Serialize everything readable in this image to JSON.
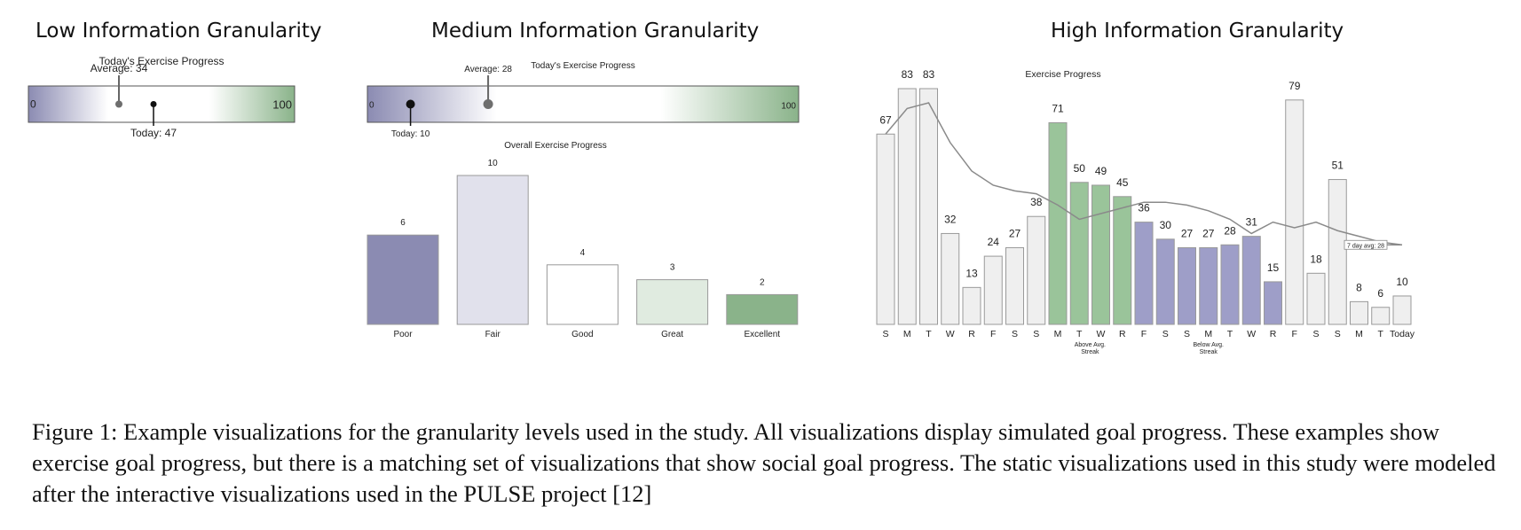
{
  "panels": {
    "low": {
      "title": "Low Information Granularity"
    },
    "medium": {
      "title": "Medium Information Granularity"
    },
    "high": {
      "title": "High Information Granularity"
    }
  },
  "chart_data": [
    {
      "type": "gauge",
      "title": "Today's Exercise Progress",
      "min": 0,
      "max": 100,
      "min_label": "0",
      "max_label": "100",
      "average": 34,
      "average_label": "Average: 34",
      "today": 47,
      "today_label": "Today: 47",
      "colors": {
        "low": "#8b8bb2",
        "mid": "#ffffff",
        "high": "#8ab38a"
      }
    },
    {
      "type": "gauge",
      "title": "Today's Exercise Progress",
      "min": 0,
      "max": 100,
      "min_label": "0",
      "max_label": "100",
      "average": 28,
      "average_label": "Average: 28",
      "today": 10,
      "today_label": "Today: 10",
      "colors": {
        "low": "#8b8bb2",
        "mid": "#ffffff",
        "high": "#8ab38a"
      }
    },
    {
      "type": "bar",
      "title": "Overall Exercise Progress",
      "categories": [
        "Poor",
        "Fair",
        "Good",
        "Great",
        "Excellent"
      ],
      "values": [
        6,
        10,
        4,
        3,
        2
      ],
      "colors": [
        "#8b8bb2",
        "#e1e1ec",
        "#ffffff",
        "#e0ebe0",
        "#8ab38a"
      ],
      "ylim": [
        0,
        10
      ]
    },
    {
      "type": "bar",
      "title": "Exercise Progress",
      "categories": [
        "S",
        "M",
        "T",
        "W",
        "R",
        "F",
        "S",
        "S",
        "M",
        "T",
        "W",
        "R",
        "F",
        "S",
        "S",
        "M",
        "T",
        "W",
        "R",
        "F",
        "S",
        "S",
        "M",
        "T",
        "Today"
      ],
      "values": [
        67,
        83,
        83,
        32,
        13,
        24,
        27,
        38,
        71,
        50,
        49,
        45,
        36,
        30,
        27,
        27,
        28,
        31,
        15,
        79,
        18,
        51,
        8,
        6,
        10
      ],
      "groups": [
        "neutral",
        "neutral",
        "neutral",
        "neutral",
        "neutral",
        "neutral",
        "neutral",
        "neutral",
        "above",
        "above",
        "above",
        "above",
        "below",
        "below",
        "below",
        "below",
        "below",
        "below",
        "below",
        "neutral",
        "neutral",
        "neutral",
        "neutral",
        "neutral",
        "neutral"
      ],
      "group_colors": {
        "neutral": "#efefef",
        "above": "#9ac49a",
        "below": "#9e9ec8"
      },
      "streak_labels": [
        {
          "text": [
            "Above Avg.",
            "Streak"
          ],
          "first": 8,
          "last": 11
        },
        {
          "text": [
            "Below Avg.",
            "Streak"
          ],
          "first": 12,
          "last": 18
        }
      ],
      "avg_line": {
        "name": "7 day avg: 28",
        "values": [
          67,
          76,
          78,
          64,
          54,
          49,
          47,
          46,
          42,
          37,
          39,
          41,
          43,
          43,
          42,
          40,
          37,
          32,
          36,
          34,
          36,
          33,
          31,
          29,
          28
        ]
      },
      "ylim": [
        0,
        83
      ]
    }
  ],
  "caption": "Figure 1: Example visualizations for the granularity levels used in the study. All visualizations display simulated goal progress. These examples show exercise goal progress, but there is a matching set of visualizations that show social goal progress. The static visualizations used in this study were modeled after the interactive visualizations used in the PULSE project  [12]"
}
